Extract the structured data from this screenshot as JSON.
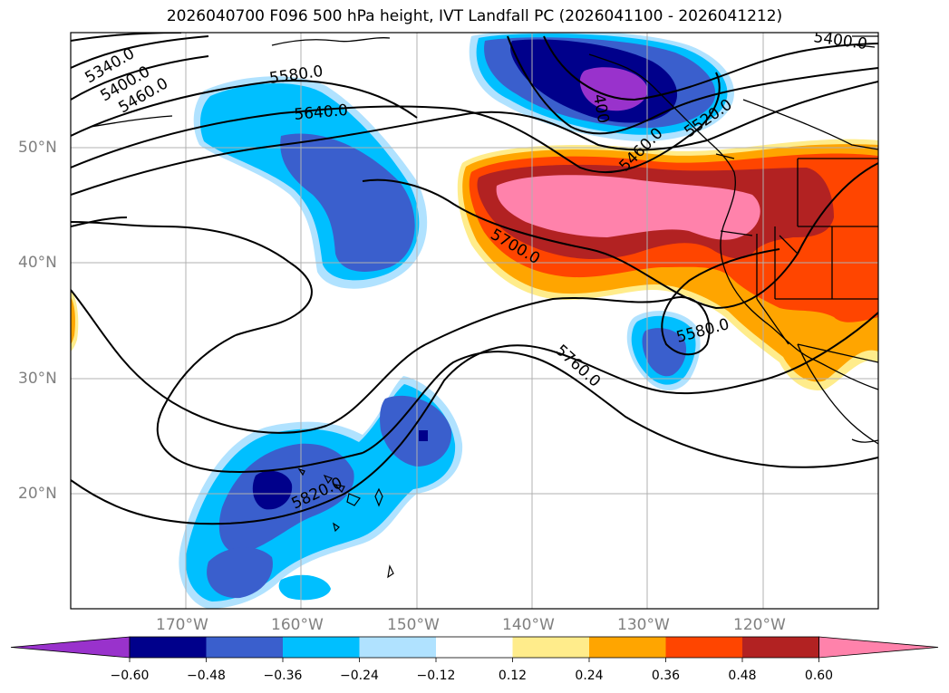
{
  "title": "2026040700 F096 500 hPa height, IVT Landfall PC (2026041100 - 2026041212)",
  "lat_labels": [
    "50°N",
    "40°N",
    "30°N",
    "20°N"
  ],
  "lon_labels": [
    "170°W",
    "160°W",
    "150°W",
    "140°W",
    "130°W",
    "120°W"
  ],
  "contour_labels": [
    "5340.0",
    "5400.0",
    "5460.0",
    "5580.0",
    "5640.0",
    "5400.0",
    "5460.0",
    "5520.0",
    "5700.0",
    "5580.0",
    "5760.0",
    "5820.0",
    "400"
  ],
  "colorbar": {
    "ticks": [
      "−0.60",
      "−0.48",
      "−0.36",
      "−0.24",
      "−0.12",
      "0.12",
      "0.24",
      "0.36",
      "0.48",
      "0.60"
    ],
    "colors": [
      "#9932cc",
      "#00008b",
      "#3a5fcd",
      "#00bfff",
      "#b0e2ff",
      "#ffffff",
      "#ffec8b",
      "#ffa500",
      "#ff4500",
      "#b22222",
      "#ff82ab"
    ]
  }
}
